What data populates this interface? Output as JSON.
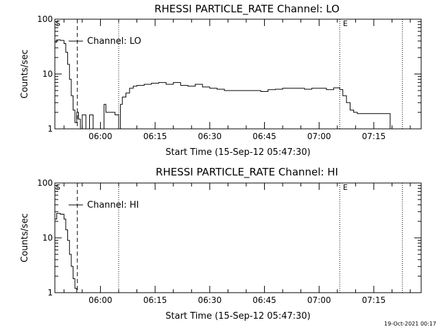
{
  "footer": "19-Oct-2021 00:17",
  "chart_data": [
    {
      "type": "line",
      "title": "RHESSI PARTICLE_RATE Channel: LO",
      "xlabel": "Start Time (15-Sep-12 05:47:30)",
      "ylabel": "Counts/sec",
      "y_scale": "log",
      "ylim": [
        1,
        100
      ],
      "xlim": [
        "05:47:30",
        "07:28:00"
      ],
      "x_ticks": [
        "06:00",
        "06:15",
        "06:30",
        "06:45",
        "07:00",
        "07:15"
      ],
      "y_ticks": [
        "1",
        "10",
        "100"
      ],
      "legend": "Channel: LO",
      "markers": [
        "S",
        "E"
      ],
      "dashed_line_x": "05:53:40",
      "dotted_lines_x": [
        "06:05:00",
        "07:05:40",
        "07:22:50"
      ],
      "series": [
        {
          "x": [
            "05:47:30",
            "05:48:00",
            "05:49:00",
            "05:50:00",
            "05:50:30",
            "05:51:00",
            "05:51:30",
            "05:52:00",
            "05:52:30",
            "05:53:00",
            "05:53:30",
            "05:54:00",
            "05:54:30",
            "05:55:00",
            "05:56:00",
            "05:57:00",
            "05:57:30",
            "05:58:00",
            "05:59:00",
            "06:00:00",
            "06:01:00",
            "06:01:30",
            "06:02:00",
            "06:03:00",
            "06:04:00",
            "06:05:00",
            "06:05:30",
            "06:06:00",
            "06:07:00",
            "06:08:00",
            "06:09:00",
            "06:10:00",
            "06:12:00",
            "06:14:00",
            "06:16:00",
            "06:18:00",
            "06:20:00",
            "06:22:00",
            "06:24:00",
            "06:26:00",
            "06:28:00",
            "06:30:00",
            "06:32:00",
            "06:34:00",
            "06:36:00",
            "06:38:00",
            "06:40:00",
            "06:42:00",
            "06:44:00",
            "06:46:00",
            "06:48:00",
            "06:50:00",
            "06:52:00",
            "06:54:00",
            "06:56:00",
            "06:58:00",
            "07:00:00",
            "07:02:00",
            "07:04:00",
            "07:05:40",
            "07:06:30",
            "07:07:30",
            "07:08:30",
            "07:09:30",
            "07:10:30",
            "07:12:00",
            "07:14:00",
            "07:16:00",
            "07:18:00",
            "07:19:00",
            "07:19:30"
          ],
          "y": [
            38,
            42,
            41,
            36,
            25,
            15,
            8,
            4,
            2.2,
            1.3,
            2,
            1.5,
            1,
            1.8,
            1,
            1.8,
            1.8,
            1,
            1,
            1,
            2.8,
            2,
            2,
            2,
            1.8,
            1,
            2.8,
            3.8,
            4.5,
            5.5,
            6,
            6.2,
            6.5,
            6.8,
            7,
            6.5,
            7,
            6.2,
            6,
            6.5,
            5.8,
            5.5,
            5.3,
            5,
            5,
            5,
            5,
            5,
            4.8,
            5.2,
            5.3,
            5.5,
            5.5,
            5.5,
            5.3,
            5.5,
            5.5,
            5.2,
            5.6,
            5.2,
            4,
            3,
            2.2,
            2,
            1.9,
            1.9,
            1.9,
            1.9,
            1.9,
            1.9,
            1
          ]
        }
      ]
    },
    {
      "type": "line",
      "title": "RHESSI PARTICLE_RATE Channel: HI",
      "xlabel": "Start Time (15-Sep-12 05:47:30)",
      "ylabel": "Counts/sec",
      "y_scale": "log",
      "ylim": [
        1,
        100
      ],
      "xlim": [
        "05:47:30",
        "07:28:00"
      ],
      "x_ticks": [
        "06:00",
        "06:15",
        "06:30",
        "06:45",
        "07:00",
        "07:15"
      ],
      "y_ticks": [
        "1",
        "10",
        "100"
      ],
      "legend": "Channel: HI",
      "markers": [
        "S",
        "E"
      ],
      "dashed_line_x": "05:53:40",
      "dotted_lines_x": [
        "06:05:00",
        "07:05:40",
        "07:22:50"
      ],
      "series": [
        {
          "x": [
            "05:47:30",
            "05:48:00",
            "05:49:00",
            "05:50:00",
            "05:50:30",
            "05:51:00",
            "05:51:30",
            "05:52:00",
            "05:52:30",
            "05:53:00",
            "05:53:30"
          ],
          "y": [
            22,
            28,
            27,
            22,
            14,
            9,
            5,
            3,
            1.8,
            1.2,
            1
          ]
        }
      ]
    }
  ]
}
